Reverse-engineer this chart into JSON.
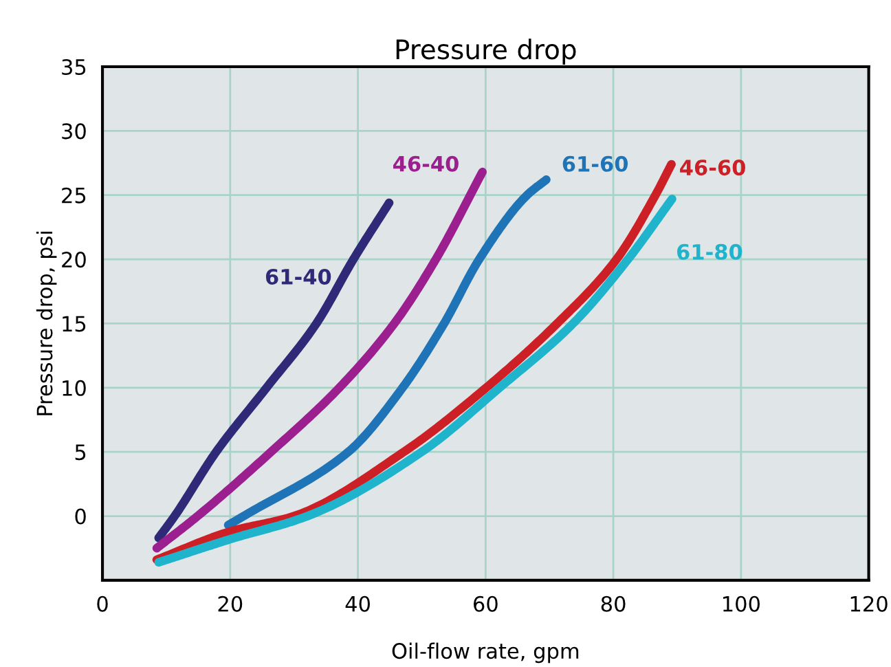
{
  "chart_data": {
    "type": "line",
    "title": "Pressure drop",
    "xlabel": "Oil-flow rate, gpm",
    "ylabel": "Pressure drop, psi",
    "xlim": [
      0,
      120
    ],
    "xticks": [
      0,
      20,
      40,
      60,
      80,
      100,
      120
    ],
    "ylim": [
      -5,
      35
    ],
    "yticks": [
      0,
      5,
      10,
      15,
      20,
      25,
      30,
      35
    ],
    "grid": true,
    "marker": "none",
    "line_style": "solid",
    "series": [
      {
        "name": "61-40",
        "color": "#2e2a78",
        "x": [
          8.8,
          11.3,
          17.8,
          25.7,
          33.5,
          39.3,
          44.9
        ],
        "values": [
          -1.7,
          0,
          5,
          10,
          15,
          20,
          24.4
        ]
      },
      {
        "name": "46-40",
        "color": "#9b1f8e",
        "x": [
          8.5,
          14.9,
          26.4,
          37.1,
          45.7,
          52.2,
          59.5
        ],
        "values": [
          -2.5,
          0,
          5,
          10,
          15,
          20,
          26.8
        ]
      },
      {
        "name": "61-60",
        "color": "#1f74b8",
        "x": [
          19.7,
          22.1,
          38.5,
          47.0,
          53.5,
          59.0,
          66.5,
          69.5
        ],
        "values": [
          -0.7,
          0,
          5,
          10,
          15,
          20,
          25,
          26.2
        ]
      },
      {
        "name": "46-60",
        "color": "#cc1f26",
        "x": [
          8.5,
          20.0,
          30.0,
          47.2,
          60.1,
          71.2,
          80.5,
          86.6,
          89.1
        ],
        "values": [
          -3.4,
          -1.2,
          0,
          5,
          10,
          15,
          20,
          25,
          27.4
        ]
      },
      {
        "name": "61-80",
        "color": "#1fb3cc",
        "x": [
          8.8,
          20.0,
          32.1,
          50.0,
          62.2,
          73.7,
          82.3,
          89.2
        ],
        "values": [
          -3.6,
          -1.8,
          0,
          5,
          10,
          15,
          20,
          24.7
        ]
      }
    ]
  }
}
